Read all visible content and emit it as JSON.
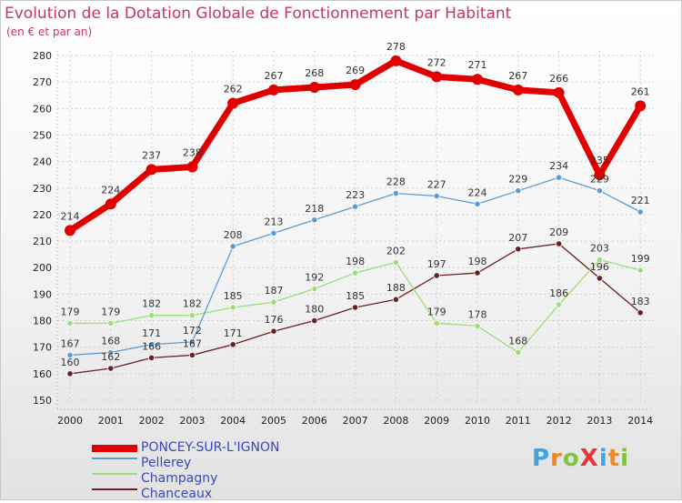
{
  "title": "Evolution de la Dotation Globale de Fonctionnement par Habitant",
  "subtitle": "(en € et par an)",
  "logo": "ProXiti",
  "colors": {
    "title": "#c8336a",
    "legend_text": "#3a48b8"
  },
  "chart_data": {
    "type": "line",
    "categories": [
      "2000",
      "2001",
      "2002",
      "2003",
      "2004",
      "2005",
      "2006",
      "2007",
      "2008",
      "2009",
      "2010",
      "2011",
      "2012",
      "2013",
      "2014"
    ],
    "ylim": [
      150,
      280
    ],
    "yticks": [
      150,
      160,
      170,
      180,
      190,
      200,
      210,
      220,
      230,
      240,
      250,
      260,
      270,
      280
    ],
    "grid": true,
    "series": [
      {
        "name": "PONCEY-SUR-L'IGNON",
        "color": "#e00000",
        "values": [
          214,
          224,
          237,
          238,
          262,
          267,
          268,
          269,
          278,
          272,
          271,
          267,
          266,
          235,
          261
        ]
      },
      {
        "name": "Pellerey",
        "color": "#5b9bd5",
        "values": [
          167,
          168,
          171,
          172,
          208,
          213,
          218,
          223,
          228,
          227,
          224,
          229,
          234,
          229,
          221
        ]
      },
      {
        "name": "Champagny",
        "color": "#99e07a",
        "values": [
          179,
          179,
          182,
          182,
          185,
          187,
          192,
          198,
          202,
          179,
          178,
          168,
          186,
          203,
          199
        ]
      },
      {
        "name": "Chanceaux",
        "color": "#6b1f24",
        "values": [
          160,
          162,
          166,
          167,
          171,
          176,
          180,
          185,
          188,
          197,
          198,
          207,
          209,
          196,
          183
        ]
      }
    ]
  }
}
